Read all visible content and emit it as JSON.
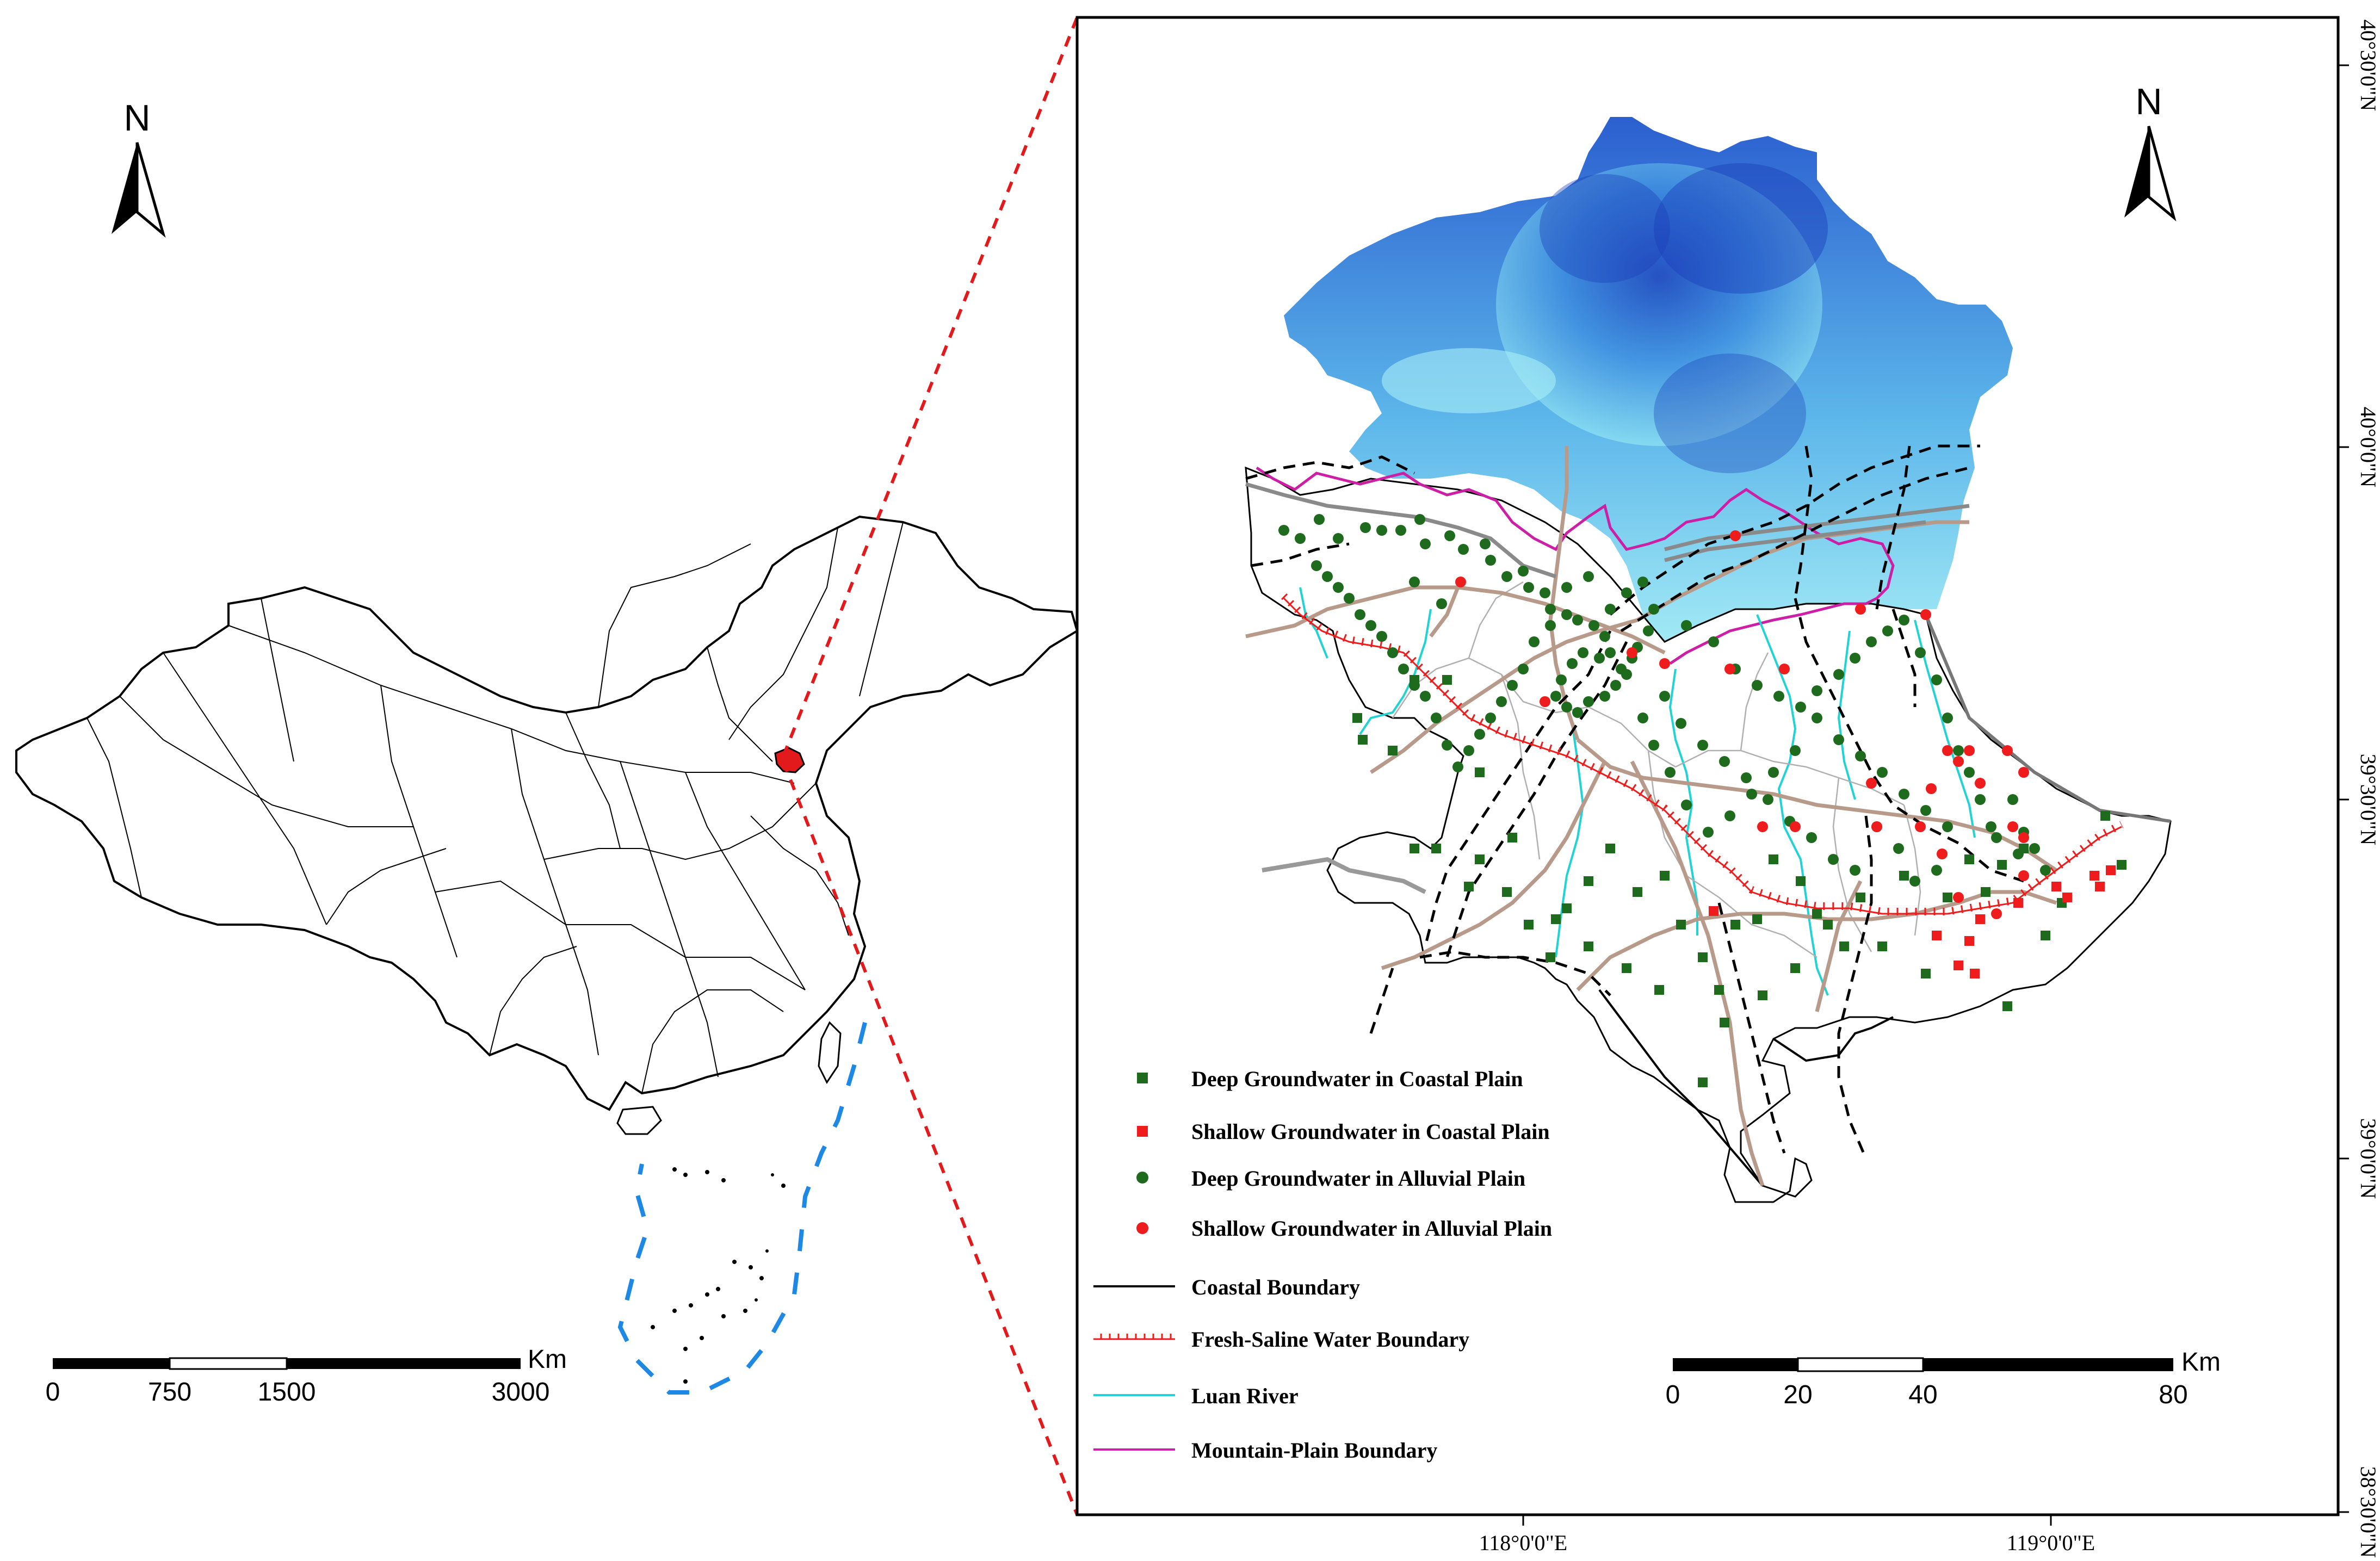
{
  "overview_map": {
    "north_label": "N",
    "scale_bar": {
      "unit": "Km",
      "ticks": [
        "0",
        "750",
        "1500",
        "3000"
      ]
    }
  },
  "detail_map": {
    "north_label": "N",
    "scale_bar": {
      "unit": "Km",
      "ticks": [
        "0",
        "20",
        "40",
        "80"
      ]
    },
    "lat_labels": [
      "40°30'0\"N",
      "40°0'0\"N",
      "39°30'0\"N",
      "39°0'0\"N",
      "38°30'0\"N"
    ],
    "lon_labels": [
      "118°0'0\"E",
      "119°0'0\"E"
    ]
  },
  "legend": {
    "items": [
      {
        "label": "Deep Groundwater in Coastal Plain",
        "symbol": "square",
        "color": "#1e6b1e"
      },
      {
        "label": "Shallow Groundwater in Coastal Plain",
        "symbol": "square",
        "color": "#ee1c1c"
      },
      {
        "label": "Deep Groundwater in Alluvial Plain",
        "symbol": "circle",
        "color": "#1e6b1e"
      },
      {
        "label": "Shallow Groundwater in Alluvial Plain",
        "symbol": "circle",
        "color": "#ee1c1c"
      },
      {
        "label": "Coastal Boundary",
        "symbol": "line",
        "color": "#000000"
      },
      {
        "label": "Fresh-Saline Water Boundary",
        "symbol": "hatched-line",
        "color": "#ee1c1c"
      },
      {
        "label": "Luan River",
        "symbol": "line",
        "color": "#22d3d3"
      },
      {
        "label": "Mountain-Plain Boundary",
        "symbol": "line",
        "color": "#cc1fa5"
      }
    ]
  },
  "colors": {
    "frame": "#000000",
    "zoom_line": "#e31a1c",
    "dem_high": "#0a2aa8",
    "dem_low": "#8be4f0",
    "road": "#b89a8a",
    "railway": "#000000",
    "highway": "#8a8a8a"
  },
  "sample_points": {
    "deep_coastal": [
      [
        2495,
        1320
      ],
      [
        2505,
        1360
      ],
      [
        2560,
        1380
      ],
      [
        2600,
        1250
      ],
      [
        2640,
        1560
      ],
      [
        2700,
        1630
      ],
      [
        2720,
        1580
      ],
      [
        2770,
        1640
      ],
      [
        2810,
        1700
      ],
      [
        2850,
        1760
      ],
      [
        2880,
        1670
      ],
      [
        2920,
        1620
      ],
      [
        2960,
        1560
      ],
      [
        3010,
        1640
      ],
      [
        3060,
        1610
      ],
      [
        3090,
        1700
      ],
      [
        3130,
        1760
      ],
      [
        3160,
        1820
      ],
      [
        3190,
        1700
      ],
      [
        3230,
        1690
      ],
      [
        3260,
        1580
      ],
      [
        3310,
        1620
      ],
      [
        3340,
        1680
      ],
      [
        3390,
        1740
      ],
      [
        3420,
        1650
      ],
      [
        3460,
        1740
      ],
      [
        3500,
        1610
      ],
      [
        3540,
        1790
      ],
      [
        3580,
        1650
      ],
      [
        3620,
        1580
      ],
      [
        3650,
        1640
      ],
      [
        3680,
        1590
      ],
      [
        3720,
        1560
      ],
      [
        3760,
        1720
      ],
      [
        3790,
        1660
      ],
      [
        3130,
        1990
      ],
      [
        3170,
        1880
      ],
      [
        3240,
        1830
      ],
      [
        3300,
        1780
      ],
      [
        3360,
        1700
      ],
      [
        3050,
        1820
      ],
      [
        2990,
        1780
      ],
      [
        2920,
        1740
      ],
      [
        2860,
        1690
      ],
      [
        2780,
        1540
      ],
      [
        2720,
        1420
      ],
      [
        2660,
        1250
      ],
      [
        2600,
        1560
      ],
      [
        3870,
        1500
      ],
      [
        3900,
        1590
      ],
      [
        3690,
        1850
      ]
    ],
    "shallow_coastal": [
      [
        3150,
        1675
      ],
      [
        3560,
        1720
      ],
      [
        3620,
        1730
      ],
      [
        3640,
        1690
      ],
      [
        3780,
        1630
      ],
      [
        3800,
        1650
      ],
      [
        3850,
        1610
      ],
      [
        3860,
        1630
      ],
      [
        3880,
        1600
      ],
      [
        3710,
        1660
      ],
      [
        3630,
        1790
      ],
      [
        3600,
        1775
      ]
    ],
    "deep_alluvial": [
      [
        2360,
        975
      ],
      [
        2390,
        990
      ],
      [
        2425,
        955
      ],
      [
        2460,
        990
      ],
      [
        2510,
        970
      ],
      [
        2540,
        975
      ],
      [
        2575,
        975
      ],
      [
        2610,
        955
      ],
      [
        2620,
        1000
      ],
      [
        2665,
        985
      ],
      [
        2690,
        1010
      ],
      [
        2730,
        1000
      ],
      [
        2740,
        1030
      ],
      [
        2770,
        1060
      ],
      [
        2800,
        1050
      ],
      [
        2810,
        1080
      ],
      [
        2840,
        1090
      ],
      [
        2850,
        1120
      ],
      [
        2880,
        1130
      ],
      [
        2900,
        1140
      ],
      [
        2930,
        1150
      ],
      [
        2950,
        1170
      ],
      [
        2960,
        1200
      ],
      [
        2980,
        1230
      ],
      [
        2940,
        1210
      ],
      [
        2910,
        1200
      ],
      [
        2890,
        1220
      ],
      [
        2870,
        1250
      ],
      [
        2860,
        1280
      ],
      [
        2880,
        1300
      ],
      [
        2900,
        1310
      ],
      [
        2920,
        1290
      ],
      [
        2950,
        1280
      ],
      [
        2970,
        1260
      ],
      [
        2990,
        1240
      ],
      [
        3000,
        1210
      ],
      [
        3010,
        1190
      ],
      [
        3030,
        1160
      ],
      [
        2960,
        1120
      ],
      [
        2990,
        1090
      ],
      [
        3020,
        1070
      ],
      [
        3040,
        1120
      ],
      [
        2920,
        1060
      ],
      [
        2880,
        1080
      ],
      [
        2850,
        1150
      ],
      [
        2820,
        1180
      ],
      [
        2800,
        1230
      ],
      [
        2780,
        1260
      ],
      [
        2760,
        1290
      ],
      [
        2740,
        1320
      ],
      [
        2720,
        1350
      ],
      [
        2700,
        1380
      ],
      [
        2680,
        1410
      ],
      [
        2660,
        1370
      ],
      [
        2640,
        1320
      ],
      [
        2620,
        1280
      ],
      [
        2600,
        1260
      ],
      [
        2580,
        1230
      ],
      [
        2560,
        1200
      ],
      [
        2540,
        1170
      ],
      [
        2520,
        1150
      ],
      [
        2500,
        1130
      ],
      [
        2480,
        1100
      ],
      [
        2460,
        1080
      ],
      [
        2440,
        1060
      ],
      [
        2420,
        1040
      ],
      [
        2600,
        1070
      ],
      [
        2650,
        1110
      ],
      [
        3100,
        1150
      ],
      [
        3150,
        1180
      ],
      [
        3190,
        1230
      ],
      [
        3230,
        1260
      ],
      [
        3270,
        1280
      ],
      [
        3310,
        1300
      ],
      [
        3340,
        1270
      ],
      [
        3380,
        1240
      ],
      [
        3410,
        1210
      ],
      [
        3440,
        1180
      ],
      [
        3470,
        1160
      ],
      [
        3500,
        1140
      ],
      [
        3530,
        1200
      ],
      [
        3560,
        1250
      ],
      [
        3580,
        1320
      ],
      [
        3600,
        1380
      ],
      [
        3620,
        1420
      ],
      [
        3640,
        1470
      ],
      [
        3660,
        1520
      ],
      [
        3580,
        1520
      ],
      [
        3540,
        1490
      ],
      [
        3500,
        1460
      ],
      [
        3460,
        1420
      ],
      [
        3420,
        1390
      ],
      [
        3380,
        1360
      ],
      [
        3340,
        1320
      ],
      [
        3300,
        1380
      ],
      [
        3260,
        1420
      ],
      [
        3220,
        1460
      ],
      [
        3180,
        1500
      ],
      [
        3140,
        1530
      ],
      [
        3100,
        1480
      ],
      [
        3070,
        1420
      ],
      [
        3040,
        1370
      ],
      [
        3020,
        1320
      ],
      [
        3060,
        1280
      ],
      [
        3090,
        1330
      ],
      [
        3130,
        1370
      ],
      [
        3170,
        1400
      ],
      [
        3210,
        1430
      ],
      [
        3250,
        1470
      ],
      [
        3290,
        1510
      ],
      [
        3330,
        1540
      ],
      [
        3370,
        1580
      ],
      [
        3410,
        1600
      ],
      [
        3450,
        1520
      ],
      [
        3490,
        1560
      ],
      [
        3520,
        1620
      ],
      [
        3560,
        1600
      ],
      [
        3700,
        1470
      ],
      [
        3720,
        1530
      ],
      [
        3740,
        1560
      ],
      [
        3760,
        1600
      ],
      [
        3710,
        1570
      ],
      [
        3670,
        1540
      ]
    ],
    "shallow_alluvial": [
      [
        2685,
        1070
      ],
      [
        3190,
        985
      ],
      [
        3000,
        1200
      ],
      [
        3060,
        1220
      ],
      [
        3180,
        1230
      ],
      [
        3280,
        1230
      ],
      [
        3420,
        1120
      ],
      [
        3540,
        1130
      ],
      [
        3580,
        1380
      ],
      [
        3600,
        1400
      ],
      [
        3620,
        1380
      ],
      [
        3690,
        1380
      ],
      [
        3720,
        1420
      ],
      [
        3640,
        1440
      ],
      [
        3240,
        1520
      ],
      [
        3450,
        1520
      ],
      [
        3530,
        1520
      ],
      [
        3570,
        1570
      ],
      [
        3700,
        1520
      ],
      [
        3720,
        1540
      ],
      [
        3440,
        1440
      ],
      [
        3300,
        1520
      ],
      [
        3720,
        1610
      ],
      [
        3670,
        1680
      ],
      [
        3600,
        1650
      ],
      [
        3550,
        1450
      ],
      [
        2840,
        1290
      ]
    ]
  }
}
